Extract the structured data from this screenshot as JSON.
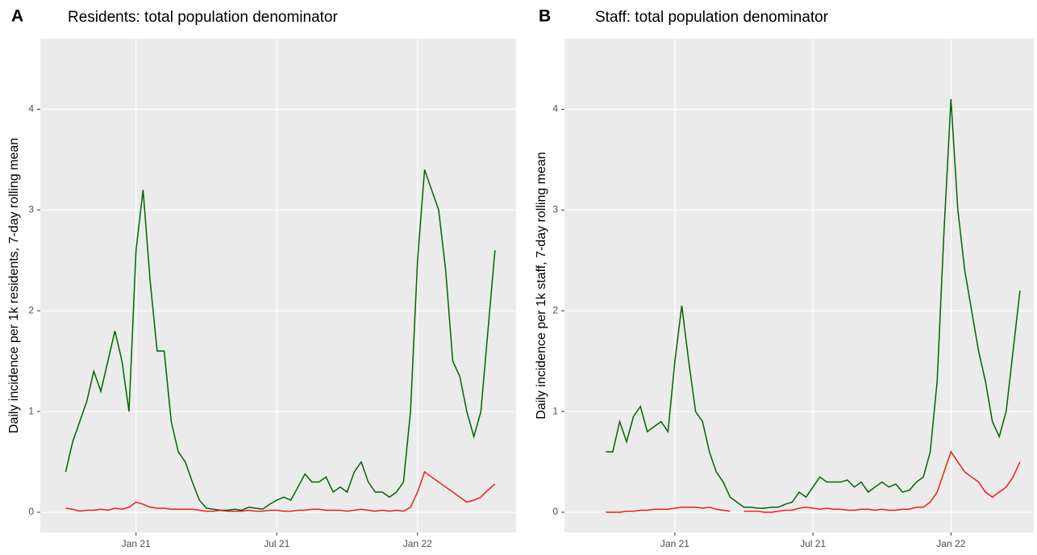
{
  "chart_data": [
    {
      "type": "line",
      "panel_label": "A",
      "title": "Residents: total population denominator",
      "y_label": "Daily incidence per 1k residents, 7-day rolling mean",
      "x": [
        2020.75,
        2020.775,
        2020.8,
        2020.825,
        2020.85,
        2020.875,
        2020.9,
        2020.925,
        2020.95,
        2020.975,
        2021.0,
        2021.025,
        2021.05,
        2021.075,
        2021.1,
        2021.125,
        2021.15,
        2021.175,
        2021.2,
        2021.225,
        2021.25,
        2021.275,
        2021.3,
        2021.325,
        2021.35,
        2021.375,
        2021.4,
        2021.425,
        2021.45,
        2021.475,
        2021.5,
        2021.525,
        2021.55,
        2021.575,
        2021.6,
        2021.625,
        2021.65,
        2021.675,
        2021.7,
        2021.725,
        2021.75,
        2021.775,
        2021.8,
        2021.825,
        2021.85,
        2021.875,
        2021.9,
        2021.925,
        2021.95,
        2021.975,
        2022.0,
        2022.025,
        2022.05,
        2022.075,
        2022.1,
        2022.125,
        2022.15,
        2022.175,
        2022.2,
        2022.225,
        2022.25,
        2022.275
      ],
      "series": [
        {
          "color": "#006400",
          "values": [
            0.4,
            0.7,
            0.9,
            1.1,
            1.4,
            1.2,
            1.5,
            1.8,
            1.5,
            1.0,
            2.6,
            3.2,
            2.3,
            1.6,
            1.6,
            0.9,
            0.6,
            0.5,
            0.3,
            0.12,
            0.04,
            0.03,
            0.02,
            0.02,
            0.03,
            0.02,
            0.05,
            0.04,
            0.03,
            0.08,
            0.12,
            0.15,
            0.12,
            0.25,
            0.38,
            0.3,
            0.3,
            0.35,
            0.2,
            0.25,
            0.2,
            0.4,
            0.5,
            0.3,
            0.2,
            0.2,
            0.15,
            0.2,
            0.3,
            1.0,
            2.5,
            3.4,
            3.2,
            3.0,
            2.4,
            1.5,
            1.35,
            1.0,
            0.75,
            1.0,
            1.8,
            2.6
          ]
        },
        {
          "color": "#ee1c1c",
          "values": [
            0.04,
            0.03,
            0.01,
            0.02,
            0.02,
            0.03,
            0.02,
            0.04,
            0.03,
            0.05,
            0.1,
            0.08,
            0.05,
            0.04,
            0.04,
            0.03,
            0.03,
            0.03,
            0.03,
            0.02,
            0.01,
            0.01,
            0.02,
            0.01,
            0.01,
            0.01,
            0.02,
            0.01,
            0.01,
            0.02,
            0.02,
            0.01,
            0.01,
            0.02,
            0.02,
            0.03,
            0.03,
            0.02,
            0.02,
            0.02,
            0.01,
            0.02,
            0.03,
            0.02,
            0.01,
            0.02,
            0.01,
            0.02,
            0.01,
            0.05,
            0.2,
            0.4,
            0.35,
            0.3,
            0.25,
            0.2,
            0.15,
            0.1,
            0.12,
            0.15,
            0.22,
            0.28
          ]
        }
      ],
      "xlim": [
        2020.66,
        2022.35
      ],
      "ylim": [
        -0.2,
        4.7
      ],
      "xticks": [
        {
          "value": 2021.0,
          "label": "Jan 21"
        },
        {
          "value": 2021.5,
          "label": "Jul 21"
        },
        {
          "value": 2022.0,
          "label": "Jan 22"
        }
      ],
      "yticks": [
        0,
        1,
        2,
        3,
        4
      ],
      "grid": true
    },
    {
      "type": "line",
      "panel_label": "B",
      "title": "Staff: total population denominator",
      "y_label": "Daily incidence per 1k staff, 7-day rolling mean",
      "x": [
        2020.75,
        2020.775,
        2020.8,
        2020.825,
        2020.85,
        2020.875,
        2020.9,
        2020.925,
        2020.95,
        2020.975,
        2021.0,
        2021.025,
        2021.05,
        2021.075,
        2021.1,
        2021.125,
        2021.15,
        2021.175,
        2021.2,
        2021.225,
        2021.25,
        2021.275,
        2021.3,
        2021.325,
        2021.35,
        2021.375,
        2021.4,
        2021.425,
        2021.45,
        2021.475,
        2021.5,
        2021.525,
        2021.55,
        2021.575,
        2021.6,
        2021.625,
        2021.65,
        2021.675,
        2021.7,
        2021.725,
        2021.75,
        2021.775,
        2021.8,
        2021.825,
        2021.85,
        2021.875,
        2021.9,
        2021.925,
        2021.95,
        2021.975,
        2022.0,
        2022.025,
        2022.05,
        2022.075,
        2022.1,
        2022.125,
        2022.15,
        2022.175,
        2022.2,
        2022.225,
        2022.25
      ],
      "series": [
        {
          "color": "#006400",
          "values": [
            0.6,
            0.6,
            0.9,
            0.7,
            0.95,
            1.05,
            0.8,
            0.85,
            0.9,
            0.8,
            1.5,
            2.05,
            1.5,
            1.0,
            0.9,
            0.6,
            0.4,
            0.3,
            0.15,
            0.1,
            0.05,
            0.05,
            0.04,
            0.04,
            0.05,
            0.05,
            0.08,
            0.1,
            0.2,
            0.15,
            0.25,
            0.35,
            0.3,
            0.3,
            0.3,
            0.32,
            0.25,
            0.3,
            0.2,
            0.25,
            0.3,
            0.25,
            0.28,
            0.2,
            0.22,
            0.3,
            0.35,
            0.6,
            1.3,
            2.8,
            4.1,
            3.0,
            2.4,
            2.0,
            1.6,
            1.3,
            0.9,
            0.75,
            1.0,
            1.6,
            2.2
          ]
        },
        {
          "color": "#ee1c1c",
          "values": [
            0,
            0,
            0,
            0.01,
            0.01,
            0.02,
            0.02,
            0.03,
            0.03,
            0.03,
            0.04,
            0.05,
            0.05,
            0.05,
            0.04,
            0.05,
            0.03,
            0.02,
            0.01,
            null,
            0.01,
            0.01,
            0.01,
            0,
            0,
            0.01,
            0.02,
            0.02,
            0.04,
            0.05,
            0.04,
            0.03,
            0.04,
            0.03,
            0.03,
            0.02,
            0.02,
            0.03,
            0.03,
            0.02,
            0.03,
            0.02,
            0.02,
            0.03,
            0.03,
            0.05,
            0.05,
            0.1,
            0.2,
            0.4,
            0.6,
            0.5,
            0.4,
            0.35,
            0.3,
            0.2,
            0.15,
            0.2,
            0.25,
            0.35,
            0.5
          ]
        }
      ],
      "xlim": [
        2020.6,
        2022.3
      ],
      "ylim": [
        -0.2,
        4.7
      ],
      "xticks": [
        {
          "value": 2021.0,
          "label": "Jan 21"
        },
        {
          "value": 2021.5,
          "label": "Jul 21"
        },
        {
          "value": 2022.0,
          "label": "Jan 22"
        }
      ],
      "yticks": [
        0,
        1,
        2,
        3,
        4
      ],
      "grid": true
    }
  ]
}
